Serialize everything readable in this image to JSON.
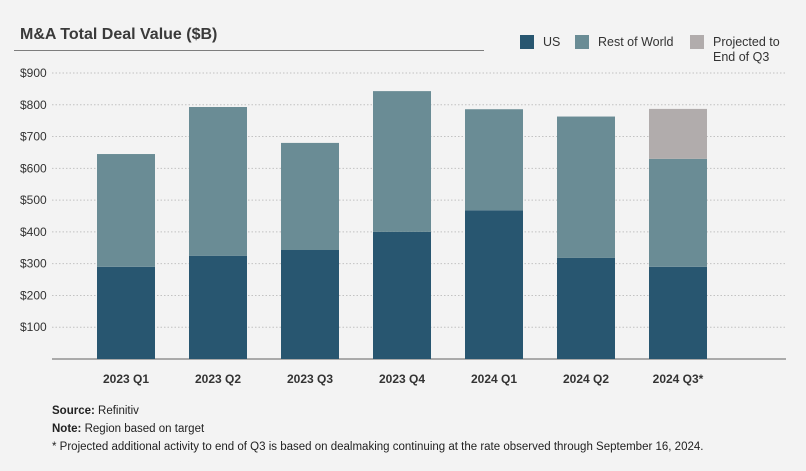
{
  "colors": {
    "us": "#285670",
    "rest_of_world": "#6a8c95",
    "projected": "#b1acac",
    "grid": "#c2c2c2",
    "axis": "#606060"
  },
  "chart_data": {
    "type": "stacked-bar",
    "title": "M&A Total Deal Value ($B)",
    "categories": [
      "2023 Q1",
      "2023 Q2",
      "2023 Q3",
      "2023 Q4",
      "2024 Q1",
      "2024 Q2",
      "2024 Q3*"
    ],
    "series": [
      {
        "name": "US",
        "color_key": "us",
        "values": [
          290,
          325,
          343,
          400,
          468,
          318,
          290
        ]
      },
      {
        "name": "Rest of World",
        "color_key": "rest_of_world",
        "values": [
          355,
          468,
          337,
          443,
          318,
          445,
          340
        ]
      },
      {
        "name": "Projected to End of Q3",
        "color_key": "projected",
        "values": [
          0,
          0,
          0,
          0,
          0,
          0,
          157
        ]
      }
    ],
    "ylim": [
      0,
      900
    ],
    "yticks": [
      100,
      200,
      300,
      400,
      500,
      600,
      700,
      800,
      900
    ],
    "ytick_labels": [
      "$100",
      "$200",
      "$300",
      "$400",
      "$500",
      "$600",
      "$700",
      "$800",
      "$900"
    ],
    "xlabel": "",
    "ylabel": "",
    "grid": true,
    "legend_position": "top-right"
  },
  "legend": {
    "us": "US",
    "rest_of_world": "Rest of World",
    "projected_line1": "Projected to",
    "projected_line2": "End of Q3"
  },
  "footnotes": {
    "source_label": "Source:",
    "source_text": "Refinitiv",
    "note_label": "Note:",
    "note_text": "Region based on target",
    "asterisk_text": "* Projected additional activity to end of Q3 is based on dealmaking continuing at the rate observed through September 16, 2024."
  }
}
